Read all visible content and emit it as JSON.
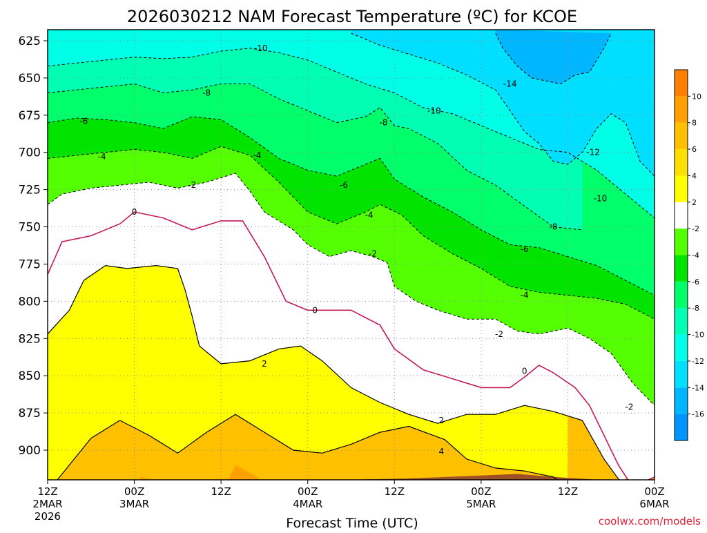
{
  "chart_data": {
    "type": "heatmap",
    "title": "2026030212 NAM Forecast Temperature (ºC) for KCOE",
    "xlabel": "Forecast Time (UTC)",
    "ylabel": "",
    "credit": "coolwx.com/models",
    "y_scale": "pressure (hPa), increasing downward",
    "ylim": [
      620,
      935
    ],
    "yticks": [
      "625",
      "650",
      "675",
      "700",
      "725",
      "750",
      "775",
      "800",
      "825",
      "850",
      "875",
      "900"
    ],
    "xlim_hours": [
      0,
      84
    ],
    "xticks": [
      {
        "l1": "12Z",
        "l2": "2MAR",
        "l3": "2026"
      },
      {
        "l1": "00Z",
        "l2": "3MAR",
        "l3": ""
      },
      {
        "l1": "12Z",
        "l2": "",
        "l3": ""
      },
      {
        "l1": "00Z",
        "l2": "4MAR",
        "l3": ""
      },
      {
        "l1": "12Z",
        "l2": "",
        "l3": ""
      },
      {
        "l1": "00Z",
        "l2": "5MAR",
        "l3": ""
      },
      {
        "l1": "12Z",
        "l2": "",
        "l3": ""
      },
      {
        "l1": "00Z",
        "l2": "6MAR",
        "l3": ""
      }
    ],
    "grid": true,
    "contour_interval_C": 2,
    "isotherms": [
      {
        "temp_C": 4,
        "points": [
          [
            0,
            928
          ],
          [
            6,
            892
          ],
          [
            10,
            880
          ],
          [
            14,
            890
          ],
          [
            18,
            902
          ],
          [
            22,
            888
          ],
          [
            26,
            876
          ],
          [
            30,
            888
          ],
          [
            34,
            900
          ],
          [
            38,
            902
          ],
          [
            42,
            896
          ],
          [
            46,
            888
          ],
          [
            50,
            884
          ],
          [
            55,
            893
          ],
          [
            58,
            906
          ],
          [
            62,
            912
          ],
          [
            66,
            914
          ],
          [
            70,
            918
          ],
          [
            72,
            925
          ]
        ]
      },
      {
        "temp_C": 2,
        "points": [
          [
            0,
            822
          ],
          [
            3,
            806
          ],
          [
            5,
            786
          ],
          [
            8,
            776
          ],
          [
            11,
            778
          ],
          [
            15,
            776
          ],
          [
            18,
            778
          ],
          [
            19,
            792
          ],
          [
            20,
            810
          ],
          [
            21,
            830
          ],
          [
            24,
            842
          ],
          [
            28,
            840
          ],
          [
            32,
            832
          ],
          [
            35,
            830
          ],
          [
            38,
            840
          ],
          [
            42,
            858
          ],
          [
            46,
            868
          ],
          [
            50,
            876
          ],
          [
            54,
            882
          ],
          [
            58,
            876
          ],
          [
            62,
            876
          ],
          [
            66,
            870
          ],
          [
            70,
            874
          ],
          [
            74,
            880
          ],
          [
            77,
            906
          ],
          [
            80,
            926
          ]
        ]
      },
      {
        "temp_C": 0,
        "points": [
          [
            0,
            782
          ],
          [
            2,
            760
          ],
          [
            6,
            756
          ],
          [
            10,
            748
          ],
          [
            12,
            740
          ],
          [
            16,
            744
          ],
          [
            20,
            752
          ],
          [
            24,
            746
          ],
          [
            27,
            746
          ],
          [
            30,
            770
          ],
          [
            33,
            800
          ],
          [
            36,
            806
          ],
          [
            39,
            806
          ],
          [
            42,
            806
          ],
          [
            46,
            816
          ],
          [
            48,
            832
          ],
          [
            52,
            846
          ],
          [
            56,
            852
          ],
          [
            60,
            858
          ],
          [
            64,
            858
          ],
          [
            66,
            851
          ],
          [
            68,
            843
          ],
          [
            70,
            848
          ],
          [
            73,
            858
          ],
          [
            75,
            870
          ],
          [
            77,
            890
          ],
          [
            79,
            910
          ],
          [
            81,
            925
          ],
          [
            84,
            918
          ]
        ]
      },
      {
        "temp_C": -2,
        "points": [
          [
            0,
            735
          ],
          [
            2,
            728
          ],
          [
            6,
            724
          ],
          [
            10,
            722
          ],
          [
            14,
            720
          ],
          [
            18,
            724
          ],
          [
            22,
            720
          ],
          [
            26,
            714
          ],
          [
            28,
            726
          ],
          [
            30,
            740
          ],
          [
            34,
            752
          ],
          [
            36,
            762
          ],
          [
            39,
            770
          ],
          [
            42,
            766
          ],
          [
            45,
            770
          ],
          [
            47,
            774
          ],
          [
            48,
            790
          ],
          [
            51,
            800
          ],
          [
            54,
            806
          ],
          [
            58,
            812
          ],
          [
            62,
            812
          ],
          [
            65,
            820
          ],
          [
            68,
            822
          ],
          [
            72,
            818
          ],
          [
            75,
            825
          ],
          [
            78,
            835
          ],
          [
            81,
            855
          ],
          [
            84,
            870
          ]
        ]
      },
      {
        "temp_C": -4,
        "points": [
          [
            0,
            704
          ],
          [
            4,
            702
          ],
          [
            8,
            700
          ],
          [
            12,
            698
          ],
          [
            16,
            700
          ],
          [
            20,
            704
          ],
          [
            24,
            696
          ],
          [
            28,
            702
          ],
          [
            32,
            720
          ],
          [
            36,
            740
          ],
          [
            40,
            748
          ],
          [
            44,
            740
          ],
          [
            46,
            735
          ],
          [
            49,
            742
          ],
          [
            52,
            756
          ],
          [
            56,
            768
          ],
          [
            60,
            778
          ],
          [
            64,
            790
          ],
          [
            68,
            794
          ],
          [
            72,
            796
          ],
          [
            76,
            798
          ],
          [
            80,
            802
          ],
          [
            84,
            812
          ]
        ]
      },
      {
        "temp_C": -6,
        "points": [
          [
            0,
            680
          ],
          [
            4,
            677
          ],
          [
            8,
            678
          ],
          [
            12,
            680
          ],
          [
            16,
            684
          ],
          [
            20,
            676
          ],
          [
            24,
            678
          ],
          [
            28,
            690
          ],
          [
            32,
            704
          ],
          [
            36,
            712
          ],
          [
            40,
            716
          ],
          [
            44,
            708
          ],
          [
            46,
            704
          ],
          [
            48,
            718
          ],
          [
            52,
            730
          ],
          [
            56,
            740
          ],
          [
            60,
            752
          ],
          [
            64,
            762
          ],
          [
            68,
            764
          ],
          [
            72,
            770
          ],
          [
            76,
            776
          ],
          [
            80,
            786
          ],
          [
            84,
            796
          ]
        ]
      },
      {
        "temp_C": -8,
        "points": [
          [
            0,
            660
          ],
          [
            4,
            658
          ],
          [
            8,
            656
          ],
          [
            12,
            654
          ],
          [
            16,
            660
          ],
          [
            20,
            658
          ],
          [
            24,
            654
          ],
          [
            28,
            654
          ],
          [
            32,
            664
          ],
          [
            36,
            672
          ],
          [
            40,
            680
          ],
          [
            44,
            676
          ],
          [
            46,
            670
          ],
          [
            48,
            682
          ],
          [
            50,
            684
          ],
          [
            54,
            694
          ],
          [
            58,
            712
          ],
          [
            62,
            722
          ],
          [
            66,
            736
          ],
          [
            70,
            750
          ],
          [
            74,
            752
          ]
        ]
      },
      {
        "temp_C": -10,
        "points": [
          [
            0,
            642
          ],
          [
            4,
            640
          ],
          [
            8,
            638
          ],
          [
            12,
            636
          ],
          [
            16,
            637
          ],
          [
            20,
            636
          ],
          [
            24,
            632
          ],
          [
            28,
            630
          ],
          [
            32,
            633
          ],
          [
            36,
            638
          ],
          [
            40,
            646
          ],
          [
            44,
            654
          ],
          [
            48,
            660
          ],
          [
            52,
            670
          ],
          [
            56,
            674
          ],
          [
            60,
            682
          ],
          [
            64,
            690
          ],
          [
            68,
            698
          ],
          [
            72,
            700
          ],
          [
            76,
            712
          ],
          [
            80,
            728
          ],
          [
            82,
            736
          ],
          [
            84,
            744
          ]
        ]
      },
      {
        "temp_C": -12,
        "points": [
          [
            42,
            620
          ],
          [
            46,
            628
          ],
          [
            50,
            634
          ],
          [
            54,
            640
          ],
          [
            58,
            648
          ],
          [
            62,
            658
          ],
          [
            64,
            672
          ],
          [
            66,
            686
          ],
          [
            68,
            694
          ],
          [
            70,
            706
          ],
          [
            72,
            708
          ],
          [
            74,
            700
          ],
          [
            76,
            684
          ],
          [
            78,
            674
          ],
          [
            80,
            680
          ],
          [
            82,
            706
          ],
          [
            84,
            716
          ]
        ]
      },
      {
        "temp_C": -14,
        "points": [
          [
            62,
            620
          ],
          [
            63,
            630
          ],
          [
            65,
            642
          ],
          [
            67,
            650
          ],
          [
            69,
            652
          ],
          [
            71,
            654
          ],
          [
            73,
            648
          ],
          [
            75,
            646
          ],
          [
            76,
            638
          ],
          [
            77,
            630
          ],
          [
            78,
            620
          ]
        ]
      }
    ],
    "labels": [
      {
        "text": "-10",
        "x": 29.5,
        "y": 630
      },
      {
        "text": "-8",
        "x": 22.0,
        "y": 660
      },
      {
        "text": "-6",
        "x": 5.0,
        "y": 679
      },
      {
        "text": "-4",
        "x": 7.5,
        "y": 703
      },
      {
        "text": "-2",
        "x": 20.0,
        "y": 722
      },
      {
        "text": "0",
        "x": 12.0,
        "y": 740
      },
      {
        "text": "-4",
        "x": 29.0,
        "y": 702
      },
      {
        "text": "-8",
        "x": 46.5,
        "y": 680
      },
      {
        "text": "-10",
        "x": 53.5,
        "y": 672
      },
      {
        "text": "-14",
        "x": 64.0,
        "y": 654
      },
      {
        "text": "-6",
        "x": 41.0,
        "y": 722
      },
      {
        "text": "-4",
        "x": 44.5,
        "y": 742
      },
      {
        "text": "-2",
        "x": 45.0,
        "y": 768
      },
      {
        "text": "0",
        "x": 37.0,
        "y": 806
      },
      {
        "text": "2",
        "x": 30.0,
        "y": 842
      },
      {
        "text": "-12",
        "x": 75.5,
        "y": 700
      },
      {
        "text": "-10",
        "x": 76.5,
        "y": 731
      },
      {
        "text": "-8",
        "x": 70.0,
        "y": 750
      },
      {
        "text": "-6",
        "x": 66.0,
        "y": 765
      },
      {
        "text": "-4",
        "x": 66.0,
        "y": 796
      },
      {
        "text": "-2",
        "x": 62.5,
        "y": 822
      },
      {
        "text": "0",
        "x": 66.0,
        "y": 847
      },
      {
        "text": "2",
        "x": 54.5,
        "y": 880
      },
      {
        "text": "4",
        "x": 54.5,
        "y": 901
      },
      {
        "text": "-2",
        "x": 80.5,
        "y": 871
      }
    ],
    "colorbar": {
      "levels": [
        "10",
        "8",
        "6",
        "4",
        "2",
        "-2",
        "-4",
        "-6",
        "-8",
        "-10",
        "-12",
        "-14",
        "-16"
      ],
      "colors": [
        "#ff8000",
        "#ffa000",
        "#ffc000",
        "#ffe000",
        "#ffff00",
        "#ffffff",
        "#53ff00",
        "#00e400",
        "#00ff6a",
        "#00ffb3",
        "#00ffe6",
        "#00dfff",
        "#00b6ff",
        "#0094ff"
      ]
    },
    "ground_color": "#9c5028"
  }
}
